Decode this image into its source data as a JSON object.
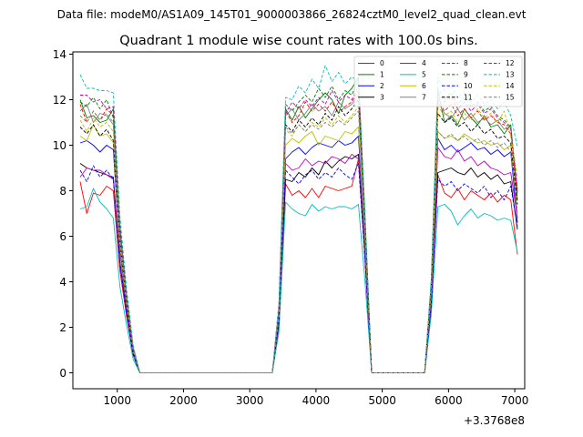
{
  "suptitle": "Data file: modeM0/AS1A09_145T01_9000003866_26824cztM0_level2_quad_clean.evt",
  "chart_data": {
    "type": "line",
    "title": "Quadrant 1 module wise count rates with 100.0s bins.",
    "xlabel": "",
    "ylabel": "",
    "x_offset_label": "+3.3768e8",
    "xlim": [
      330,
      7150
    ],
    "ylim": [
      -0.7,
      14.1
    ],
    "xticks": [
      1000,
      2000,
      3000,
      4000,
      5000,
      6000,
      7000
    ],
    "xtick_labels": [
      "1000",
      "2000",
      "3000",
      "4000",
      "5000",
      "6000",
      "7000"
    ],
    "yticks": [
      0,
      2,
      4,
      6,
      8,
      10,
      12,
      14
    ],
    "ytick_labels": [
      "0",
      "2",
      "4",
      "6",
      "8",
      "10",
      "12",
      "14"
    ],
    "legend_position": "top-right",
    "grid": false,
    "x": [
      440,
      540,
      640,
      740,
      840,
      940,
      1040,
      1140,
      1240,
      1340,
      1440,
      1540,
      1640,
      1740,
      1840,
      1940,
      2040,
      2140,
      2240,
      2340,
      2440,
      2540,
      2640,
      2740,
      2840,
      2940,
      3040,
      3140,
      3240,
      3340,
      3440,
      3540,
      3640,
      3740,
      3840,
      3940,
      4040,
      4140,
      4240,
      4340,
      4440,
      4540,
      4640,
      4740,
      4840,
      4940,
      5040,
      5140,
      5240,
      5340,
      5440,
      5540,
      5640,
      5740,
      5840,
      5940,
      6040,
      6140,
      6240,
      6340,
      6440,
      6540,
      6640,
      6740,
      6840,
      6940,
      7040
    ],
    "series": [
      {
        "name": "0",
        "color": "#ff0000",
        "dash": "solid",
        "values": [
          8.4,
          7.0,
          7.9,
          7.8,
          8.2,
          8.0,
          4.5,
          2.5,
          0.8,
          0,
          0,
          0,
          0,
          0,
          0,
          0,
          0,
          0,
          0,
          0,
          0,
          0,
          0,
          0,
          0,
          0,
          0,
          0,
          0,
          0,
          2.0,
          8.3,
          7.8,
          8.0,
          7.7,
          8.1,
          7.7,
          8.2,
          8.1,
          8.0,
          8.1,
          8.2,
          9.4,
          5.0,
          0,
          0,
          0,
          0,
          0,
          0,
          0,
          0,
          0,
          3.0,
          8.7,
          7.9,
          7.7,
          8.1,
          7.6,
          8.0,
          7.8,
          7.6,
          7.9,
          7.5,
          7.8,
          7.6,
          5.2
        ]
      },
      {
        "name": "1",
        "color": "#008000",
        "dash": "solid",
        "values": [
          12.0,
          11.2,
          11.3,
          11.0,
          11.1,
          11.6,
          6.4,
          3.4,
          1.1,
          0,
          0,
          0,
          0,
          0,
          0,
          0,
          0,
          0,
          0,
          0,
          0,
          0,
          0,
          0,
          0,
          0,
          0,
          0,
          0,
          0,
          2.8,
          11.6,
          11.1,
          11.7,
          11.2,
          11.6,
          12.0,
          12.3,
          12.0,
          11.4,
          12.2,
          12.5,
          13.0,
          6.8,
          0,
          0,
          0,
          0,
          0,
          0,
          0,
          0,
          0,
          4.0,
          12.4,
          11.0,
          11.3,
          10.9,
          11.6,
          11.2,
          10.9,
          11.3,
          10.8,
          10.9,
          10.5,
          10.9,
          7.6
        ]
      },
      {
        "name": "2",
        "color": "#0000ff",
        "dash": "solid",
        "values": [
          10.1,
          10.2,
          10.0,
          9.7,
          10.0,
          9.8,
          5.4,
          2.9,
          0.9,
          0,
          0,
          0,
          0,
          0,
          0,
          0,
          0,
          0,
          0,
          0,
          0,
          0,
          0,
          0,
          0,
          0,
          0,
          0,
          0,
          0,
          2.4,
          9.4,
          9.7,
          9.9,
          9.6,
          9.9,
          10.1,
          10.0,
          9.9,
          10.2,
          10.0,
          10.1,
          10.4,
          5.6,
          0,
          0,
          0,
          0,
          0,
          0,
          0,
          0,
          0,
          3.4,
          10.3,
          9.8,
          10.0,
          9.7,
          9.9,
          10.1,
          9.8,
          9.9,
          9.6,
          9.8,
          9.5,
          9.7,
          6.6
        ]
      },
      {
        "name": "3",
        "color": "#000000",
        "dash": "solid",
        "values": [
          9.2,
          9.0,
          8.9,
          8.8,
          8.7,
          8.6,
          4.9,
          2.7,
          0.8,
          0,
          0,
          0,
          0,
          0,
          0,
          0,
          0,
          0,
          0,
          0,
          0,
          0,
          0,
          0,
          0,
          0,
          0,
          0,
          0,
          0,
          2.2,
          8.5,
          8.4,
          8.8,
          8.6,
          9.0,
          8.7,
          9.3,
          9.0,
          9.3,
          9.5,
          9.4,
          9.6,
          5.2,
          0,
          0,
          0,
          0,
          0,
          0,
          0,
          0,
          0,
          3.1,
          8.8,
          8.9,
          9.0,
          8.8,
          8.7,
          9.0,
          8.6,
          8.8,
          8.5,
          8.7,
          8.3,
          8.4,
          6.3
        ]
      },
      {
        "name": "4",
        "color": "#bf00bf",
        "dash": "solid",
        "values": [
          8.6,
          9.0,
          8.9,
          8.9,
          8.7,
          8.5,
          4.8,
          2.6,
          0.8,
          0,
          0,
          0,
          0,
          0,
          0,
          0,
          0,
          0,
          0,
          0,
          0,
          0,
          0,
          0,
          0,
          0,
          0,
          0,
          0,
          0,
          2.1,
          9.2,
          8.9,
          9.0,
          9.4,
          9.1,
          9.3,
          9.2,
          9.5,
          9.4,
          9.2,
          9.6,
          9.4,
          5.0,
          0,
          0,
          0,
          0,
          0,
          0,
          0,
          0,
          0,
          3.0,
          9.9,
          9.5,
          9.4,
          9.8,
          9.3,
          9.5,
          9.1,
          9.3,
          9.0,
          8.9,
          8.7,
          8.8,
          6.8
        ]
      },
      {
        "name": "5",
        "color": "#00bfbf",
        "dash": "solid",
        "values": [
          7.2,
          7.3,
          8.1,
          7.5,
          7.2,
          6.8,
          3.8,
          2.1,
          0.6,
          0,
          0,
          0,
          0,
          0,
          0,
          0,
          0,
          0,
          0,
          0,
          0,
          0,
          0,
          0,
          0,
          0,
          0,
          0,
          0,
          0,
          1.8,
          7.5,
          7.2,
          7.0,
          6.9,
          7.4,
          7.1,
          7.3,
          7.2,
          7.3,
          7.3,
          7.2,
          7.4,
          4.0,
          0,
          0,
          0,
          0,
          0,
          0,
          0,
          0,
          0,
          2.6,
          7.3,
          7.4,
          7.1,
          6.5,
          6.9,
          7.2,
          6.8,
          7.0,
          6.9,
          6.7,
          6.8,
          6.7,
          5.3
        ]
      },
      {
        "name": "6",
        "color": "#bfbf00",
        "dash": "solid",
        "values": [
          10.4,
          10.2,
          10.9,
          10.4,
          10.5,
          10.1,
          5.6,
          3.0,
          0.9,
          0,
          0,
          0,
          0,
          0,
          0,
          0,
          0,
          0,
          0,
          0,
          0,
          0,
          0,
          0,
          0,
          0,
          0,
          0,
          0,
          0,
          2.5,
          10.0,
          10.3,
          10.1,
          10.4,
          10.6,
          10.0,
          10.4,
          10.3,
          10.2,
          10.6,
          10.5,
          10.8,
          5.8,
          0,
          0,
          0,
          0,
          0,
          0,
          0,
          0,
          0,
          3.5,
          10.6,
          10.3,
          10.4,
          10.2,
          10.5,
          10.3,
          10.1,
          10.2,
          10.0,
          10.1,
          9.8,
          10.0,
          7.0
        ]
      },
      {
        "name": "7",
        "color": "#808080",
        "dash": "solid",
        "values": [
          11.5,
          11.8,
          11.0,
          11.4,
          11.3,
          10.9,
          6.1,
          3.2,
          1.0,
          0,
          0,
          0,
          0,
          0,
          0,
          0,
          0,
          0,
          0,
          0,
          0,
          0,
          0,
          0,
          0,
          0,
          0,
          0,
          0,
          0,
          2.7,
          11.3,
          11.6,
          11.1,
          11.4,
          11.8,
          11.5,
          11.7,
          11.3,
          11.9,
          11.6,
          11.8,
          12.2,
          6.5,
          0,
          0,
          0,
          0,
          0,
          0,
          0,
          0,
          0,
          3.8,
          11.9,
          11.4,
          11.2,
          11.6,
          11.1,
          11.4,
          11.0,
          11.2,
          10.9,
          11.1,
          10.7,
          10.8,
          7.9
        ]
      },
      {
        "name": "8",
        "color": "#ff0000",
        "dash": "dashed",
        "values": [
          11.8,
          11.0,
          11.5,
          11.1,
          11.6,
          11.3,
          6.3,
          3.3,
          1.0,
          0,
          0,
          0,
          0,
          0,
          0,
          0,
          0,
          0,
          0,
          0,
          0,
          0,
          0,
          0,
          0,
          0,
          0,
          0,
          0,
          0,
          2.8,
          11.5,
          11.0,
          11.3,
          11.9,
          11.5,
          11.8,
          11.5,
          11.9,
          11.4,
          11.7,
          11.9,
          12.4,
          6.6,
          0,
          0,
          0,
          0,
          0,
          0,
          0,
          0,
          0,
          3.9,
          12.0,
          11.5,
          11.8,
          11.3,
          11.6,
          11.2,
          11.5,
          11.1,
          11.3,
          11.0,
          10.9,
          10.5,
          7.8
        ]
      },
      {
        "name": "9",
        "color": "#008000",
        "dash": "dashed",
        "values": [
          11.9,
          11.7,
          12.1,
          11.6,
          12.0,
          11.2,
          6.4,
          3.4,
          1.1,
          0,
          0,
          0,
          0,
          0,
          0,
          0,
          0,
          0,
          0,
          0,
          0,
          0,
          0,
          0,
          0,
          0,
          0,
          0,
          0,
          0,
          2.9,
          11.8,
          11.5,
          11.9,
          12.2,
          11.9,
          12.5,
          12.1,
          12.6,
          12.0,
          12.4,
          12.2,
          12.9,
          6.8,
          0,
          0,
          0,
          0,
          0,
          0,
          0,
          0,
          0,
          4.0,
          12.5,
          12.0,
          12.3,
          11.8,
          12.1,
          11.7,
          11.9,
          11.5,
          11.7,
          11.3,
          11.1,
          10.8,
          8.1
        ]
      },
      {
        "name": "10",
        "color": "#0000ff",
        "dash": "dashed",
        "values": [
          8.9,
          8.4,
          9.1,
          8.6,
          8.9,
          8.5,
          4.8,
          2.6,
          0.8,
          0,
          0,
          0,
          0,
          0,
          0,
          0,
          0,
          0,
          0,
          0,
          0,
          0,
          0,
          0,
          0,
          0,
          0,
          0,
          0,
          0,
          2.2,
          8.9,
          8.6,
          8.3,
          8.7,
          8.9,
          8.5,
          8.8,
          8.6,
          9.0,
          8.7,
          8.5,
          9.2,
          5.0,
          0,
          0,
          0,
          0,
          0,
          0,
          0,
          0,
          0,
          3.0,
          8.5,
          8.2,
          8.4,
          8.0,
          8.3,
          8.1,
          7.9,
          8.2,
          7.7,
          8.0,
          7.6,
          8.2,
          6.4
        ]
      },
      {
        "name": "11",
        "color": "#000000",
        "dash": "dashed",
        "values": [
          10.8,
          10.5,
          10.9,
          10.4,
          10.7,
          10.2,
          5.8,
          3.1,
          0.9,
          0,
          0,
          0,
          0,
          0,
          0,
          0,
          0,
          0,
          0,
          0,
          0,
          0,
          0,
          0,
          0,
          0,
          0,
          0,
          0,
          0,
          2.6,
          10.9,
          10.6,
          11.1,
          10.8,
          11.2,
          10.9,
          11.4,
          11.1,
          11.7,
          11.3,
          11.6,
          12.0,
          6.3,
          0,
          0,
          0,
          0,
          0,
          0,
          0,
          0,
          0,
          3.7,
          11.4,
          11.0,
          11.2,
          10.8,
          11.0,
          10.6,
          10.9,
          10.5,
          10.7,
          10.3,
          10.4,
          10.1,
          7.4
        ]
      },
      {
        "name": "12",
        "color": "#bf00bf",
        "dash": "dashed",
        "values": [
          12.2,
          12.2,
          11.9,
          12.0,
          11.6,
          11.7,
          6.6,
          3.5,
          1.1,
          0,
          0,
          0,
          0,
          0,
          0,
          0,
          0,
          0,
          0,
          0,
          0,
          0,
          0,
          0,
          0,
          0,
          0,
          0,
          0,
          0,
          2.9,
          11.4,
          11.9,
          11.6,
          12.0,
          11.7,
          12.1,
          11.8,
          12.4,
          11.9,
          12.2,
          12.0,
          12.6,
          6.7,
          0,
          0,
          0,
          0,
          0,
          0,
          0,
          0,
          0,
          4.0,
          12.3,
          11.9,
          12.1,
          11.6,
          11.9,
          11.5,
          11.8,
          11.4,
          11.6,
          11.2,
          11.0,
          10.7,
          8.0
        ]
      },
      {
        "name": "13",
        "color": "#00bfbf",
        "dash": "dashed",
        "values": [
          13.1,
          12.5,
          12.5,
          12.4,
          12.4,
          12.3,
          6.9,
          3.7,
          1.2,
          0,
          0,
          0,
          0,
          0,
          0,
          0,
          0,
          0,
          0,
          0,
          0,
          0,
          0,
          0,
          0,
          0,
          0,
          0,
          0,
          0,
          3.1,
          12.1,
          12.0,
          12.6,
          12.3,
          12.9,
          12.5,
          13.5,
          12.8,
          13.2,
          12.7,
          13.0,
          12.8,
          7.0,
          0,
          0,
          0,
          0,
          0,
          0,
          0,
          0,
          0,
          4.2,
          13.0,
          12.4,
          12.6,
          12.1,
          12.3,
          11.9,
          12.2,
          11.8,
          12.0,
          11.6,
          11.9,
          11.3,
          9.9
        ]
      },
      {
        "name": "14",
        "color": "#bfbf00",
        "dash": "dashed",
        "values": [
          11.1,
          10.6,
          11.2,
          10.8,
          11.0,
          10.6,
          5.9,
          3.2,
          1.0,
          0,
          0,
          0,
          0,
          0,
          0,
          0,
          0,
          0,
          0,
          0,
          0,
          0,
          0,
          0,
          0,
          0,
          0,
          0,
          0,
          0,
          2.6,
          10.7,
          10.4,
          10.9,
          10.6,
          11.0,
          10.8,
          11.2,
          10.9,
          11.3,
          11.0,
          11.3,
          11.7,
          6.1,
          0,
          0,
          0,
          0,
          0,
          0,
          0,
          0,
          0,
          3.7,
          11.7,
          11.3,
          11.5,
          11.0,
          11.4,
          11.1,
          11.6,
          11.2,
          11.4,
          11.0,
          11.5,
          10.4,
          8.6
        ]
      },
      {
        "name": "15",
        "color": "#808080",
        "dash": "dashed",
        "values": [
          11.3,
          11.0,
          11.5,
          11.1,
          11.4,
          11.0,
          6.1,
          3.3,
          1.0,
          0,
          0,
          0,
          0,
          0,
          0,
          0,
          0,
          0,
          0,
          0,
          0,
          0,
          0,
          0,
          0,
          0,
          0,
          0,
          0,
          0,
          2.6,
          10.8,
          10.5,
          10.9,
          10.6,
          10.9,
          10.7,
          11.0,
          10.8,
          11.1,
          10.9,
          11.2,
          11.5,
          6.0,
          0,
          0,
          0,
          0,
          0,
          0,
          0,
          0,
          0,
          3.6,
          10.6,
          10.3,
          10.5,
          10.2,
          10.4,
          10.1,
          10.3,
          10.0,
          10.2,
          9.9,
          10.1,
          9.7,
          7.1
        ]
      }
    ]
  }
}
